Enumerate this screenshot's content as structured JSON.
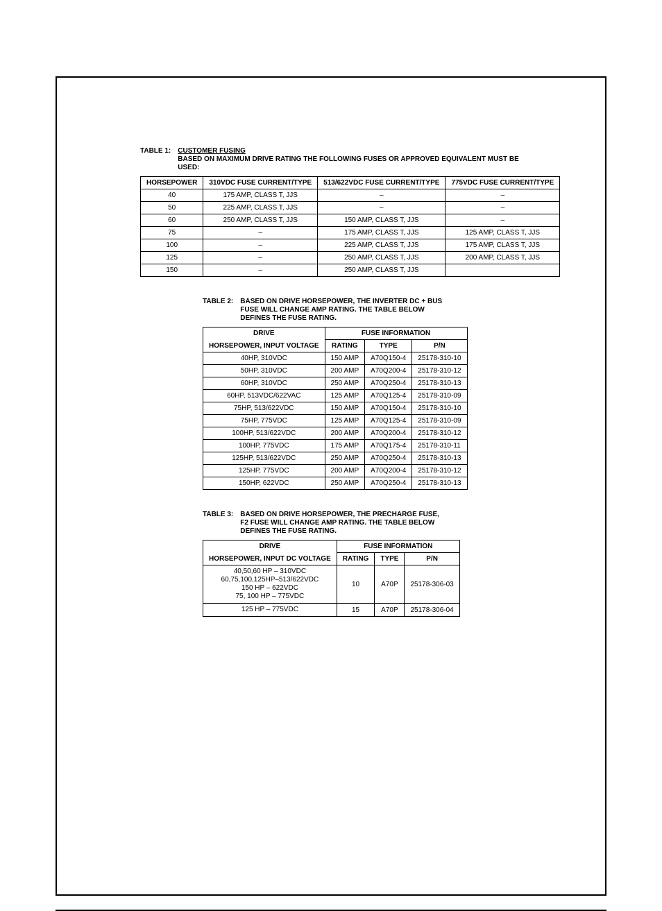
{
  "table1": {
    "label": "TABLE 1:",
    "title": "CUSTOMER FUSING",
    "subtitle": "BASED ON MAXIMUM DRIVE RATING THE FOLLOWING FUSES OR APPROVED EQUIVALENT MUST BE USED:",
    "columns": [
      "HORSEPOWER",
      "310VDC FUSE CURRENT/TYPE",
      "513/622VDC FUSE CURRENT/TYPE",
      "775VDC FUSE CURRENT/TYPE"
    ],
    "rows": [
      [
        "40",
        "175 AMP, CLASS T, JJS",
        "–",
        "–"
      ],
      [
        "50",
        "225 AMP, CLASS T, JJS",
        "–",
        "–"
      ],
      [
        "60",
        "250 AMP, CLASS T, JJS",
        "150 AMP, CLASS T, JJS",
        "–"
      ],
      [
        "75",
        "–",
        "175 AMP, CLASS T, JJS",
        "125 AMP, CLASS T, JJS"
      ],
      [
        "100",
        "–",
        "225 AMP, CLASS T, JJS",
        "175 AMP, CLASS T, JJS"
      ],
      [
        "125",
        "–",
        "250 AMP, CLASS T, JJS",
        "200 AMP, CLASS T, JJS"
      ],
      [
        "150",
        "–",
        "250 AMP, CLASS T, JJS",
        ""
      ]
    ]
  },
  "table2": {
    "label": "TABLE 2:",
    "caption": "BASED ON DRIVE HORSEPOWER, THE INVERTER DC + BUS FUSE WILL CHANGE AMP RATING.  THE TABLE BELOW DEFINES THE FUSE RATING.",
    "header_top": "DRIVE",
    "header_sub": "HORSEPOWER, INPUT VOLTAGE",
    "header_group": "FUSE INFORMATION",
    "sub_cols": [
      "RATING",
      "TYPE",
      "P/N"
    ],
    "rows": [
      [
        "40HP, 310VDC",
        "150 AMP",
        "A70Q150-4",
        "25178-310-10"
      ],
      [
        "50HP, 310VDC",
        "200 AMP",
        "A70Q200-4",
        "25178-310-12"
      ],
      [
        "60HP, 310VDC",
        "250 AMP",
        "A70Q250-4",
        "25178-310-13"
      ],
      [
        "60HP, 513VDC/622VAC",
        "125 AMP",
        "A70Q125-4",
        "25178-310-09"
      ],
      [
        "75HP, 513/622VDC",
        "150 AMP",
        "A70Q150-4",
        "25178-310-10"
      ],
      [
        "75HP, 775VDC",
        "125 AMP",
        "A70Q125-4",
        "25178-310-09"
      ],
      [
        "100HP, 513/622VDC",
        "200 AMP",
        "A70Q200-4",
        "25178-310-12"
      ],
      [
        "100HP, 775VDC",
        "175 AMP",
        "A70Q175-4",
        "25178-310-11"
      ],
      [
        "125HP, 513/622VDC",
        "250 AMP",
        "A70Q250-4",
        "25178-310-13"
      ],
      [
        "125HP, 775VDC",
        "200 AMP",
        "A70Q200-4",
        "25178-310-12"
      ],
      [
        "150HP, 622VDC",
        "250 AMP",
        "A70Q250-4",
        "25178-310-13"
      ]
    ]
  },
  "table3": {
    "label": "TABLE 3:",
    "caption": "BASED ON DRIVE HORSEPOWER, THE PRECHARGE FUSE, F2 FUSE WILL CHANGE AMP RATING.  THE TABLE BELOW DEFINES THE FUSE RATING.",
    "header_top": "DRIVE",
    "header_sub": "HORSEPOWER, INPUT DC VOLTAGE",
    "header_group": "FUSE INFORMATION",
    "sub_cols": [
      "RATING",
      "TYPE",
      "P/N"
    ],
    "rows": [
      {
        "hp": [
          "40,50,60 HP – 310VDC",
          "60,75,100,125HP–513/622VDC",
          "150 HP – 622VDC",
          "75, 100 HP – 775VDC"
        ],
        "rating": "10",
        "type": "A70P",
        "pn": "25178-306-03"
      },
      {
        "hp": [
          "125 HP – 775VDC"
        ],
        "rating": "15",
        "type": "A70P",
        "pn": "25178-306-04"
      }
    ]
  }
}
